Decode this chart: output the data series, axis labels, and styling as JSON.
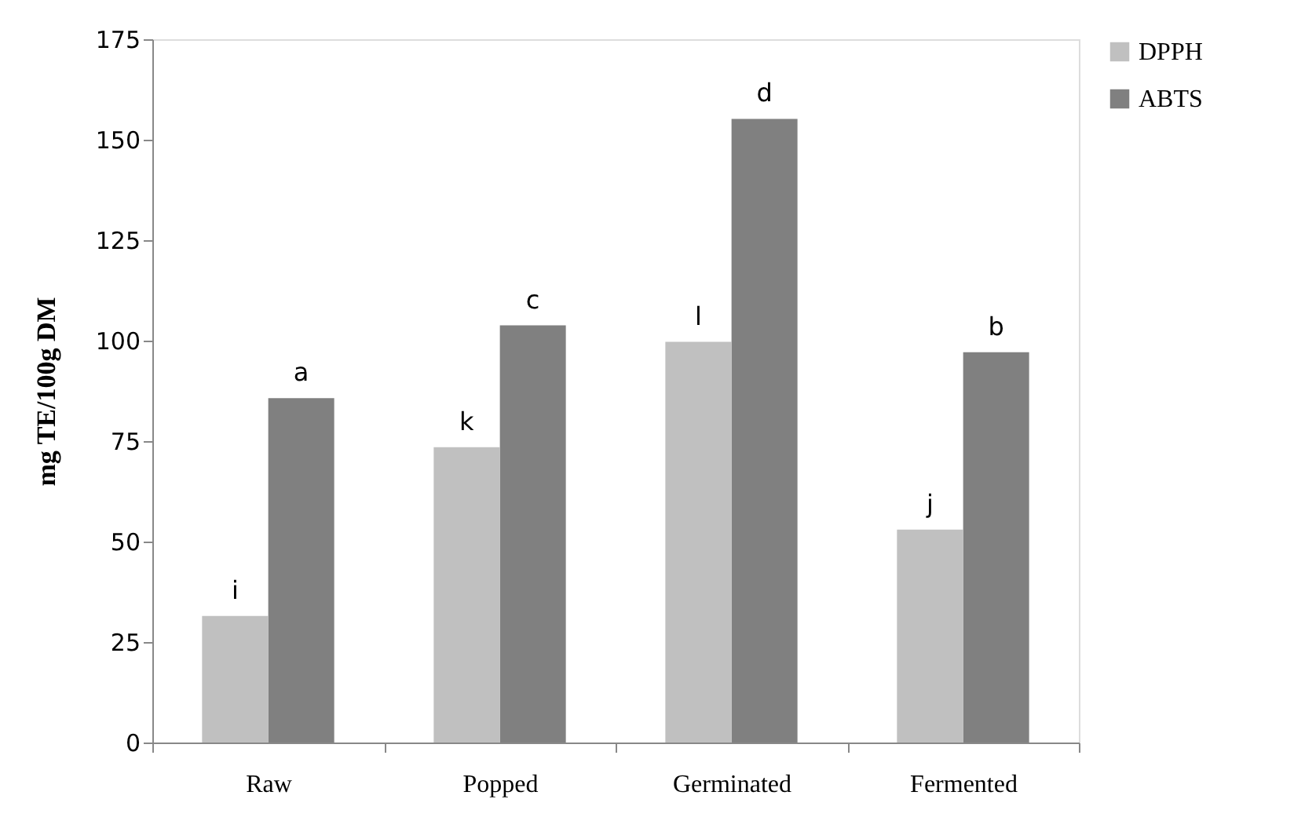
{
  "chart_data": {
    "type": "bar",
    "ylabel": "mg TE/100g DM",
    "categories": [
      "Raw",
      "Popped",
      "Germinated",
      "Fermented"
    ],
    "series": [
      {
        "name": "DPPH",
        "color": "#c0c0c0",
        "values": [
          31.5,
          73.5,
          99.7,
          53.0
        ],
        "value_labels": [
          "i",
          "k",
          "l",
          "j"
        ]
      },
      {
        "name": "ABTS",
        "color": "#808080",
        "values": [
          85.7,
          103.8,
          155.2,
          97.1
        ],
        "value_labels": [
          "a",
          "c",
          "d",
          "b"
        ]
      }
    ],
    "ylim": [
      0,
      175
    ],
    "yticks": [
      0,
      25,
      50,
      75,
      100,
      125,
      150,
      175
    ],
    "grid": false,
    "legend": "right"
  }
}
